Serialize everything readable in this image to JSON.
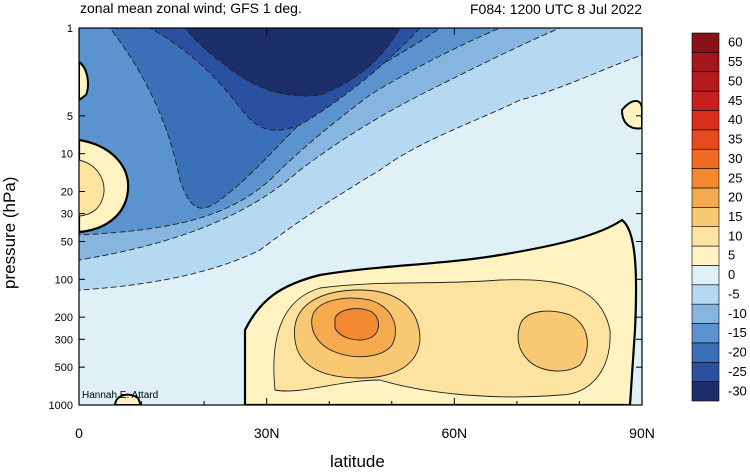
{
  "chart_data": {
    "type": "heatmap",
    "title": "zonal mean zonal wind; GFS 1 deg.",
    "subtitle": "F084: 1200 UTC 8 Jul 2022",
    "xlabel": "latitude",
    "ylabel": "pressure (hPa)",
    "credit": "Hannah E. Attard",
    "xlim": [
      0,
      90
    ],
    "x_ticks": [
      {
        "value": 0,
        "label": "0"
      },
      {
        "value": 30,
        "label": "30N"
      },
      {
        "value": 60,
        "label": "60N"
      },
      {
        "value": 90,
        "label": "90N"
      }
    ],
    "ylim": [
      1000,
      1
    ],
    "y_scale": "log",
    "y_ticks": [
      {
        "value": 1,
        "label": "1"
      },
      {
        "value": 5,
        "label": "5"
      },
      {
        "value": 10,
        "label": "10"
      },
      {
        "value": 20,
        "label": "20"
      },
      {
        "value": 30,
        "label": "30"
      },
      {
        "value": 50,
        "label": "50"
      },
      {
        "value": 100,
        "label": "100"
      },
      {
        "value": 200,
        "label": "200"
      },
      {
        "value": 300,
        "label": "300"
      },
      {
        "value": 500,
        "label": "500"
      },
      {
        "value": 1000,
        "label": "1000"
      }
    ],
    "colorbar": {
      "levels": [
        "-30",
        "-25",
        "-20",
        "-15",
        "-10",
        "-5",
        "0",
        "5",
        "10",
        "15",
        "20",
        "25",
        "30",
        "35",
        "40",
        "45",
        "50",
        "55",
        "60"
      ],
      "colors": [
        "#1d2f6b",
        "#2a50a0",
        "#3a70b8",
        "#5a93cd",
        "#86b6e0",
        "#b5d9f0",
        "#dff1f7",
        "#fff3c2",
        "#fce3a0",
        "#f9c872",
        "#f6aa50",
        "#f38a32",
        "#ef6a22",
        "#e84a1e",
        "#d92e1c",
        "#c81f1e",
        "#b51a1c",
        "#a1171a",
        "#8a1115"
      ]
    },
    "features": [
      {
        "name": "stratospheric easterlies",
        "lat_range": [
          0,
          45
        ],
        "p_range": [
          1,
          50
        ],
        "min_value": -30
      },
      {
        "name": "tropical westerly core",
        "lat": 0,
        "p": 20,
        "max_value": 10
      },
      {
        "name": "subtropical jet",
        "lat": 45,
        "p": 200,
        "max_value": 20
      },
      {
        "name": "secondary jet",
        "lat": 75,
        "p": 300,
        "max_value": 15
      }
    ]
  }
}
